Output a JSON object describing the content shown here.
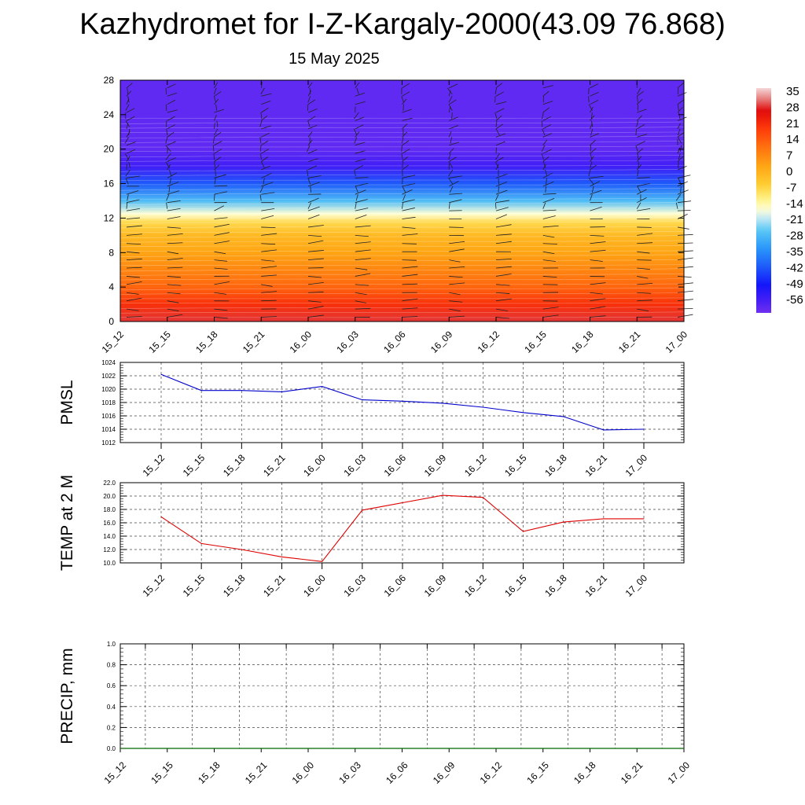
{
  "title": "Kazhydromet for I-Z-Kargaly-2000(43.09 76.868)",
  "subtitle": "15 May 2025",
  "chart_data": [
    {
      "type": "heatmap",
      "name": "temperature cross-section with wind barbs",
      "x_ticks": [
        "15_12",
        "15_15",
        "15_18",
        "15_21",
        "16_00",
        "16_03",
        "16_06",
        "16_09",
        "16_12",
        "16_15",
        "16_18",
        "16_21",
        "17_00"
      ],
      "y_ticks": [
        0,
        4,
        8,
        12,
        16,
        20,
        24,
        28
      ],
      "ylim": [
        0,
        28
      ],
      "colorbar": {
        "labels": [
          "35",
          "28",
          "21",
          "14",
          "7",
          "0",
          "-7",
          "-14",
          "-21",
          "-28",
          "-35",
          "-42",
          "-49",
          "-56"
        ],
        "range": [
          -60,
          38
        ]
      },
      "profile_height": [
        0,
        2,
        4,
        6,
        8,
        10,
        11.5,
        12.5,
        14,
        16,
        18,
        20,
        22,
        24,
        28
      ],
      "profile_temp": [
        30,
        22,
        14,
        9,
        4,
        0,
        -6,
        -15,
        -26,
        -40,
        -54,
        -58,
        -58,
        -58,
        -58
      ]
    },
    {
      "type": "line",
      "ylabel": "PMSL",
      "x_ticks": [
        "15_12",
        "15_15",
        "15_18",
        "15_21",
        "16_00",
        "16_03",
        "16_06",
        "16_09",
        "16_12",
        "16_15",
        "16_18",
        "16_21",
        "17_00"
      ],
      "y_ticks": [
        "1012",
        "1014",
        "1016",
        "1018",
        "1020",
        "1022",
        "1024"
      ],
      "ylim": [
        1012,
        1024
      ],
      "color": "#0000cc",
      "series": [
        {
          "values": [
            1022.2,
            1019.8,
            1019.8,
            1019.6,
            1020.4,
            1018.4,
            1018.2,
            1017.9,
            1017.3,
            1016.5,
            1015.9,
            1013.9,
            1014.0
          ]
        }
      ]
    },
    {
      "type": "line",
      "ylabel": "TEMP at 2 M",
      "x_ticks": [
        "15_12",
        "15_15",
        "15_18",
        "15_21",
        "16_00",
        "16_03",
        "16_06",
        "16_09",
        "16_12",
        "16_15",
        "16_18",
        "16_21",
        "17_00"
      ],
      "y_ticks": [
        "10.0",
        "12.0",
        "14.0",
        "16.0",
        "18.0",
        "20.0",
        "22.0"
      ],
      "ylim": [
        10,
        22
      ],
      "color": "#dd0000",
      "series": [
        {
          "values": [
            16.9,
            12.9,
            12.0,
            10.9,
            10.2,
            17.9,
            19.0,
            20.1,
            19.8,
            14.7,
            16.1,
            16.6,
            16.6
          ]
        }
      ]
    },
    {
      "type": "line",
      "ylabel": "PRECIP, mm",
      "x_ticks": [
        "15_12",
        "15_15",
        "15_18",
        "15_21",
        "16_00",
        "16_03",
        "16_06",
        "16_09",
        "16_12",
        "16_15",
        "16_18",
        "16_21",
        "17_00"
      ],
      "y_ticks": [
        "0.0",
        "0.2",
        "0.4",
        "0.6",
        "0.8",
        "1.0"
      ],
      "ylim": [
        0,
        1
      ],
      "color": "#006600",
      "series": [
        {
          "values": [
            0,
            0,
            0,
            0,
            0,
            0,
            0,
            0,
            0,
            0,
            0,
            0,
            0
          ]
        }
      ]
    }
  ]
}
